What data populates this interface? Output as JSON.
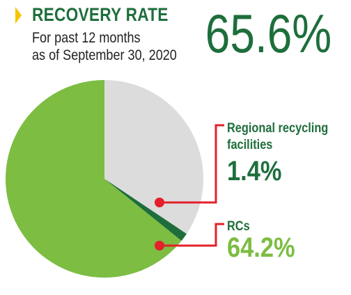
{
  "header": {
    "title": "RECOVERY RATE",
    "subtitle_line1": "For past 12 months",
    "subtitle_line2": "as of September 30, 2020",
    "overall_rate": "65.6%"
  },
  "colors": {
    "accent_yellow": "#f5c400",
    "dark_green": "#1e6e3c",
    "light_green": "#7cbd42",
    "gray": "#dcdcdd",
    "leader_red": "#e4202a"
  },
  "chart_data": {
    "type": "pie",
    "slices": [
      {
        "name": "RCs",
        "value": 64.2,
        "color": "#7cbd42"
      },
      {
        "name": "Regional recycling facilities",
        "value": 1.4,
        "color": "#1e6e3c"
      },
      {
        "name": "",
        "value": 34.4,
        "color": "#dcdcdd"
      }
    ],
    "labels": {
      "regional_name_line1": "Regional recycling",
      "regional_name_line2": "facilities",
      "regional_value": "1.4%",
      "rcs_name": "RCs",
      "rcs_value": "64.2%"
    }
  }
}
